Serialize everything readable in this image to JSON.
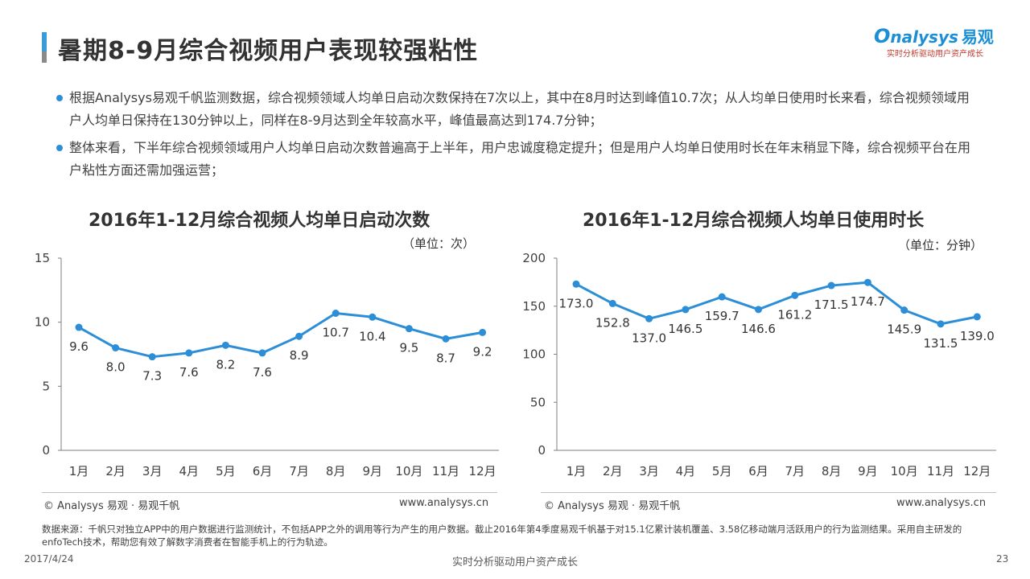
{
  "header": {
    "title": "暑期8-9月综合视频用户表现较强粘性",
    "logo_text": "nalysys",
    "logo_cn": "易观",
    "logo_slogan": "实时分析驱动用户资产成长"
  },
  "bullets": [
    "根据Analysys易观千帆监测数据，综合视频领域人均单日启动次数保持在7次以上，其中在8月时达到峰值10.7次；从人均单日使用时长来看，综合视频领域用户人均单日保持在130分钟以上，同样在8-9月达到全年较高水平，峰值最高达到174.7分钟；",
    "整体来看，下半年综合视频领域用户人均单日启动次数普遍高于上半年，用户忠诚度稳定提升；但是用户人均单日使用时长在年末稍显下降，综合视频平台在用户粘性方面还需加强运营；"
  ],
  "chart_data": [
    {
      "type": "line",
      "title": "2016年1-12月综合视频人均单日启动次数",
      "unit": "（单位：次）",
      "categories": [
        "1月",
        "2月",
        "3月",
        "4月",
        "5月",
        "6月",
        "7月",
        "8月",
        "9月",
        "10月",
        "11月",
        "12月"
      ],
      "values": [
        9.6,
        8.0,
        7.3,
        7.6,
        8.2,
        7.6,
        8.9,
        10.7,
        10.4,
        9.5,
        8.7,
        9.2
      ],
      "labels": [
        "9.6",
        "8.0",
        "7.3",
        "7.6",
        "8.2",
        "7.6",
        "8.9",
        "10.7",
        "10.4",
        "9.5",
        "8.7",
        "9.2"
      ],
      "ylim": [
        0,
        15
      ],
      "yticks": [
        "0",
        "5",
        "10",
        "15"
      ],
      "color": "#2b8ed6",
      "grid": false
    },
    {
      "type": "line",
      "title": "2016年1-12月综合视频人均单日使用时长",
      "unit": "（单位：分钟）",
      "categories": [
        "1月",
        "2月",
        "3月",
        "4月",
        "5月",
        "6月",
        "7月",
        "8月",
        "9月",
        "10月",
        "11月",
        "12月"
      ],
      "values": [
        173.0,
        152.8,
        137.0,
        146.5,
        159.7,
        146.6,
        161.2,
        171.5,
        174.7,
        145.9,
        131.5,
        139.0
      ],
      "labels": [
        "173.0",
        "152.8",
        "137.0",
        "146.5",
        "159.7",
        "146.6",
        "161.2",
        "171.5",
        "174.7",
        "145.9",
        "131.5",
        "139.0"
      ],
      "ylim": [
        0,
        200
      ],
      "yticks": [
        "0",
        "50",
        "100",
        "150",
        "200"
      ],
      "color": "#2b8ed6",
      "grid": false
    }
  ],
  "sources": {
    "left": "© Analysys 易观 · 易观千帆",
    "right": "www.analysys.cn"
  },
  "note": "数据来源：千帆只对独立APP中的用户数据进行监测统计，不包括APP之外的调用等行为产生的用户数据。截止2016年第4季度易观千帆基于对15.1亿累计装机覆盖、3.58亿移动端月活跃用户的行为监测结果。采用自主研发的enfoTech技术，帮助您有效了解数字消费者在智能手机上的行为轨迹。",
  "footer": {
    "date": "2017/4/24",
    "center": "实时分析驱动用户资产成长",
    "page": "23"
  }
}
